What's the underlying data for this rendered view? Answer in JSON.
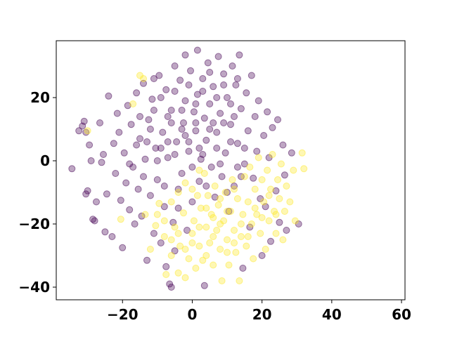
{
  "chart_data": {
    "type": "scatter",
    "title": "",
    "xlabel": "",
    "ylabel": "",
    "xlim": [
      -39,
      61
    ],
    "ylim": [
      -44,
      38
    ],
    "xticks": [
      -20,
      0,
      20,
      40,
      60
    ],
    "yticks": [
      20,
      0,
      -20,
      -40
    ],
    "xtick_labels": [
      "−20",
      "0",
      "20",
      "40",
      "60"
    ],
    "ytick_labels": [
      "20",
      "0",
      "−20",
      "−40"
    ],
    "grid": false,
    "legend": "none",
    "marker_alpha": 0.35,
    "series": [
      {
        "color": "#440154",
        "points": [
          [
            -34.5,
            -2.5
          ],
          [
            -32.5,
            9.5
          ],
          [
            -31.5,
            11
          ],
          [
            -31,
            12.5
          ],
          [
            -30.5,
            9
          ],
          [
            -30,
            -9.5
          ],
          [
            -30.5,
            -10.5
          ],
          [
            -29.5,
            5
          ],
          [
            -29,
            0
          ],
          [
            -28,
            -19
          ],
          [
            -28.5,
            -18.5
          ],
          [
            -27.5,
            -13
          ],
          [
            -26.5,
            12
          ],
          [
            -26,
            -0.5
          ],
          [
            -25.5,
            2
          ],
          [
            -25,
            -22.5
          ],
          [
            -24.5,
            -10.5
          ],
          [
            -24,
            20.5
          ],
          [
            -23,
            -24
          ],
          [
            -22.5,
            5.5
          ],
          [
            -22,
            -4
          ],
          [
            -21.5,
            15
          ],
          [
            -21,
            9
          ],
          [
            -20.5,
            -12.5
          ],
          [
            -20,
            -27.5
          ],
          [
            -19.5,
            2.5
          ],
          [
            -19,
            -7
          ],
          [
            -18.5,
            17.5
          ],
          [
            -18,
            -15.5
          ],
          [
            -17.5,
            11.5
          ],
          [
            -17,
            -2
          ],
          [
            -16.5,
            -20
          ],
          [
            -16,
            21.5
          ],
          [
            -15.5,
            -9
          ],
          [
            -15,
            7
          ],
          [
            -14.5,
            -17.5
          ],
          [
            -14,
            24.5
          ],
          [
            -13.5,
            0.5
          ],
          [
            -13,
            -31.5
          ],
          [
            -12.5,
            13
          ],
          [
            -12,
            -11
          ],
          [
            -11.5,
            19.5
          ],
          [
            -11,
            -23
          ],
          [
            -10.5,
            4
          ],
          [
            -10,
            -6
          ],
          [
            -9.5,
            27
          ],
          [
            -9,
            -26
          ],
          [
            -8.5,
            9
          ],
          [
            -8,
            -14.5
          ],
          [
            -7.5,
            22.5
          ],
          [
            -7.5,
            -33.5
          ],
          [
            -7,
            1
          ],
          [
            -6.5,
            -39
          ],
          [
            -6,
            -40
          ],
          [
            -6,
            16
          ],
          [
            -5.5,
            -19.5
          ],
          [
            -5,
            30
          ],
          [
            -5,
            -28.5
          ],
          [
            -4.5,
            6
          ],
          [
            -4,
            -9
          ],
          [
            -3.5,
            25.5
          ],
          [
            -3,
            -4
          ],
          [
            -2.5,
            12
          ],
          [
            -2,
            33.5
          ],
          [
            -2,
            19
          ],
          [
            -1.5,
            -22
          ],
          [
            -1,
            3
          ],
          [
            -0.5,
            28.5
          ],
          [
            0,
            -13
          ],
          [
            0.5,
            15.5
          ],
          [
            1,
            9.5
          ],
          [
            1.5,
            35
          ],
          [
            1.5,
            21
          ],
          [
            2,
            -6.5
          ],
          [
            2.5,
            0.5
          ],
          [
            3,
            26
          ],
          [
            3.5,
            -39.5
          ],
          [
            3.5,
            13.5
          ],
          [
            4,
            6.5
          ],
          [
            4.5,
            31
          ],
          [
            5,
            18
          ],
          [
            5.5,
            -2
          ],
          [
            6,
            23.5
          ],
          [
            6.5,
            -11.5
          ],
          [
            7,
            9
          ],
          [
            7.5,
            33
          ],
          [
            8,
            15
          ],
          [
            8.5,
            -5
          ],
          [
            9,
            27.5
          ],
          [
            9.5,
            2.5
          ],
          [
            10,
            20
          ],
          [
            10.5,
            -16
          ],
          [
            11,
            11.5
          ],
          [
            11.5,
            30
          ],
          [
            12,
            -8
          ],
          [
            12.5,
            24
          ],
          [
            13,
            5.5
          ],
          [
            13.5,
            33.5
          ],
          [
            14,
            16.5
          ],
          [
            14.5,
            -34
          ],
          [
            15,
            -1
          ],
          [
            15.5,
            21.5
          ],
          [
            16,
            9.5
          ],
          [
            16.5,
            -21
          ],
          [
            17,
            27
          ],
          [
            17.5,
            -5.5
          ],
          [
            18,
            14
          ],
          [
            18.5,
            3
          ],
          [
            19,
            19
          ],
          [
            19.5,
            -12
          ],
          [
            20,
            -30
          ],
          [
            20.5,
            8
          ],
          [
            21,
            -14.5
          ],
          [
            21.5,
            15.5
          ],
          [
            22,
            1
          ],
          [
            22.5,
            -25.5
          ],
          [
            23,
            10.5
          ],
          [
            24,
            -9.5
          ],
          [
            24.5,
            13
          ],
          [
            25,
            -19.5
          ],
          [
            26,
            5
          ],
          [
            26.5,
            -4.5
          ],
          [
            27,
            -22
          ],
          [
            28.5,
            2.5
          ],
          [
            30.5,
            -20
          ],
          [
            -18,
            -1
          ],
          [
            -16,
            5
          ],
          [
            -14,
            -5
          ],
          [
            -12,
            10
          ],
          [
            -10,
            0
          ],
          [
            -8,
            -8
          ],
          [
            -6,
            12
          ],
          [
            -4,
            -15
          ],
          [
            -2,
            8
          ],
          [
            0,
            -2
          ],
          [
            2,
            4
          ],
          [
            4,
            -8
          ],
          [
            6,
            12
          ],
          [
            8,
            -1
          ],
          [
            10,
            -10
          ],
          [
            12,
            14
          ],
          [
            14,
            -5
          ],
          [
            -11,
            26
          ],
          [
            -9,
            20
          ],
          [
            -7,
            14
          ],
          [
            -5,
            22
          ],
          [
            -3,
            16
          ],
          [
            -1,
            24
          ],
          [
            1,
            18
          ],
          [
            3,
            22
          ],
          [
            5,
            28
          ],
          [
            7,
            20
          ],
          [
            9,
            24
          ],
          [
            11,
            18
          ],
          [
            13,
            26
          ],
          [
            -15,
            14
          ],
          [
            -13,
            6
          ],
          [
            -11,
            16
          ],
          [
            -9,
            4
          ],
          [
            -7,
            6
          ],
          [
            -5,
            2
          ],
          [
            -3,
            10
          ],
          [
            -1,
            6
          ],
          [
            1,
            12
          ],
          [
            3,
            2
          ],
          [
            5,
            10
          ],
          [
            7,
            4
          ],
          [
            9,
            12
          ],
          [
            11,
            6
          ],
          [
            13,
            -2
          ],
          [
            15,
            4
          ]
        ]
      },
      {
        "color": "#fde725",
        "points": [
          [
            -30,
            9.5
          ],
          [
            -20.5,
            -18.5
          ],
          [
            -17,
            18
          ],
          [
            -15,
            27
          ],
          [
            -14,
            26
          ],
          [
            -13.5,
            -17
          ],
          [
            -12,
            -28
          ],
          [
            -10.5,
            -20.5
          ],
          [
            -9.5,
            -13.5
          ],
          [
            -8,
            -24
          ],
          [
            -7.5,
            -36
          ],
          [
            -6,
            -30
          ],
          [
            -5,
            -21
          ],
          [
            -4,
            -35.5
          ],
          [
            -3.5,
            -27
          ],
          [
            -2.5,
            -16.5
          ],
          [
            -2,
            -37
          ],
          [
            -1,
            -31
          ],
          [
            0,
            -23
          ],
          [
            0.5,
            -19
          ],
          [
            1,
            -34
          ],
          [
            1.5,
            -11
          ],
          [
            2,
            -27
          ],
          [
            2.5,
            -15
          ],
          [
            3,
            -31.5
          ],
          [
            3.5,
            -4
          ],
          [
            4,
            -21
          ],
          [
            4.5,
            -11
          ],
          [
            5,
            -26
          ],
          [
            5.5,
            -17
          ],
          [
            6,
            -33
          ],
          [
            6.5,
            -8
          ],
          [
            7,
            -22
          ],
          [
            7.5,
            -14
          ],
          [
            8,
            -28
          ],
          [
            8.5,
            -38
          ],
          [
            9,
            -19
          ],
          [
            9.5,
            -10
          ],
          [
            10,
            -25
          ],
          [
            10.5,
            -33
          ],
          [
            11,
            -16
          ],
          [
            11.5,
            -6
          ],
          [
            12,
            -22
          ],
          [
            12.5,
            -29
          ],
          [
            13,
            -12
          ],
          [
            13.5,
            -38
          ],
          [
            14,
            -24
          ],
          [
            14.5,
            -17
          ],
          [
            15,
            -5
          ],
          [
            15.5,
            -27
          ],
          [
            16,
            -13
          ],
          [
            16.5,
            -2
          ],
          [
            17,
            -20
          ],
          [
            17.5,
            -31
          ],
          [
            18,
            -9
          ],
          [
            18.5,
            -17
          ],
          [
            19,
            1
          ],
          [
            19.5,
            -23
          ],
          [
            20,
            -6
          ],
          [
            20.5,
            -13
          ],
          [
            21,
            -28
          ],
          [
            21.5,
            -3
          ],
          [
            22,
            -19
          ],
          [
            22.5,
            -9
          ],
          [
            23,
            2
          ],
          [
            23.5,
            -16
          ],
          [
            24,
            -23
          ],
          [
            24.5,
            -6
          ],
          [
            25,
            -12
          ],
          [
            25.5,
            -1
          ],
          [
            26,
            -25
          ],
          [
            26.5,
            -16
          ],
          [
            27,
            -8
          ],
          [
            28,
            -13
          ],
          [
            29,
            -3
          ],
          [
            29.5,
            -19
          ],
          [
            31.5,
            2.5
          ],
          [
            32,
            -2.5
          ],
          [
            -6,
            -13
          ],
          [
            -4,
            -10
          ],
          [
            -2,
            -7
          ],
          [
            0,
            -9
          ],
          [
            2,
            -3
          ],
          [
            4,
            -15
          ],
          [
            6,
            -18
          ],
          [
            8,
            -12
          ],
          [
            10,
            -16
          ],
          [
            12,
            -9
          ],
          [
            14,
            -20
          ],
          [
            16,
            -24
          ],
          [
            18,
            -15
          ],
          [
            20,
            -18
          ],
          [
            22,
            -11
          ],
          [
            24,
            -17
          ],
          [
            -10,
            -17
          ],
          [
            -8,
            -19
          ],
          [
            -6,
            -25
          ],
          [
            -4,
            -23
          ],
          [
            -2,
            -28
          ],
          [
            0,
            -26
          ],
          [
            2,
            -21
          ],
          [
            4,
            -30
          ],
          [
            6,
            -24
          ],
          [
            8,
            -20
          ],
          [
            10,
            -29
          ],
          [
            12,
            -26
          ]
        ]
      }
    ]
  }
}
